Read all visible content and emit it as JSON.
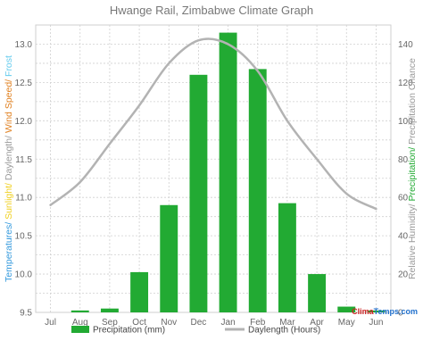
{
  "chart_data": {
    "type": "bar",
    "title": "Hwange Rail, Zimbabwe Climate Graph",
    "categories": [
      "Jul",
      "Aug",
      "Sep",
      "Oct",
      "Nov",
      "Dec",
      "Jan",
      "Feb",
      "Mar",
      "Apr",
      "May",
      "Jun"
    ],
    "series": [
      {
        "name": "Precipitation (mm)",
        "kind": "bar",
        "axis": "right",
        "color": "#22aa33",
        "values": [
          0,
          1,
          2,
          21,
          56,
          124,
          146,
          127,
          57,
          20,
          3,
          1
        ]
      },
      {
        "name": "Daylength (Hours)",
        "kind": "line",
        "axis": "left",
        "color": "#b3b3b3",
        "values": [
          10.9,
          11.2,
          11.7,
          12.2,
          12.75,
          13.05,
          13.0,
          12.65,
          12.0,
          11.5,
          11.05,
          10.85
        ]
      }
    ],
    "ylim_left": [
      9.5,
      13.25
    ],
    "ylim_right": [
      0,
      150
    ],
    "left_ticks": [
      "9.5",
      "10.0",
      "10.5",
      "11.0",
      "11.5",
      "12.0",
      "12.5",
      "13.0"
    ],
    "right_ticks": [
      "0",
      "20",
      "40",
      "60",
      "80",
      "100",
      "120",
      "140"
    ],
    "ylabel_left": [
      {
        "text": "Temperatures/",
        "color": "#3399dd"
      },
      {
        "text": " Sunlight/",
        "color": "#f0d020"
      },
      {
        "text": " Daylength/",
        "color": "#999999"
      },
      {
        "text": " Wind Speed/",
        "color": "#e08020"
      },
      {
        "text": " Frost",
        "color": "#66ccee"
      }
    ],
    "ylabel_right": [
      {
        "text": "Relative Humidity/",
        "color": "#999999"
      },
      {
        "text": " Precipitation/",
        "color": "#22aa33"
      },
      {
        "text": " Precipitation Chance",
        "color": "#999999"
      }
    ],
    "grid": true,
    "legend_position": "bottom"
  },
  "brand": {
    "prefix": "Clima",
    "suffix": "Temps.com",
    "prefix_color": "#cc2222",
    "suffix_color": "#1f6fcc"
  },
  "colors": {
    "grid": "#d0d0d0",
    "plot_border": "#cfcfcf",
    "text": "#666666"
  }
}
